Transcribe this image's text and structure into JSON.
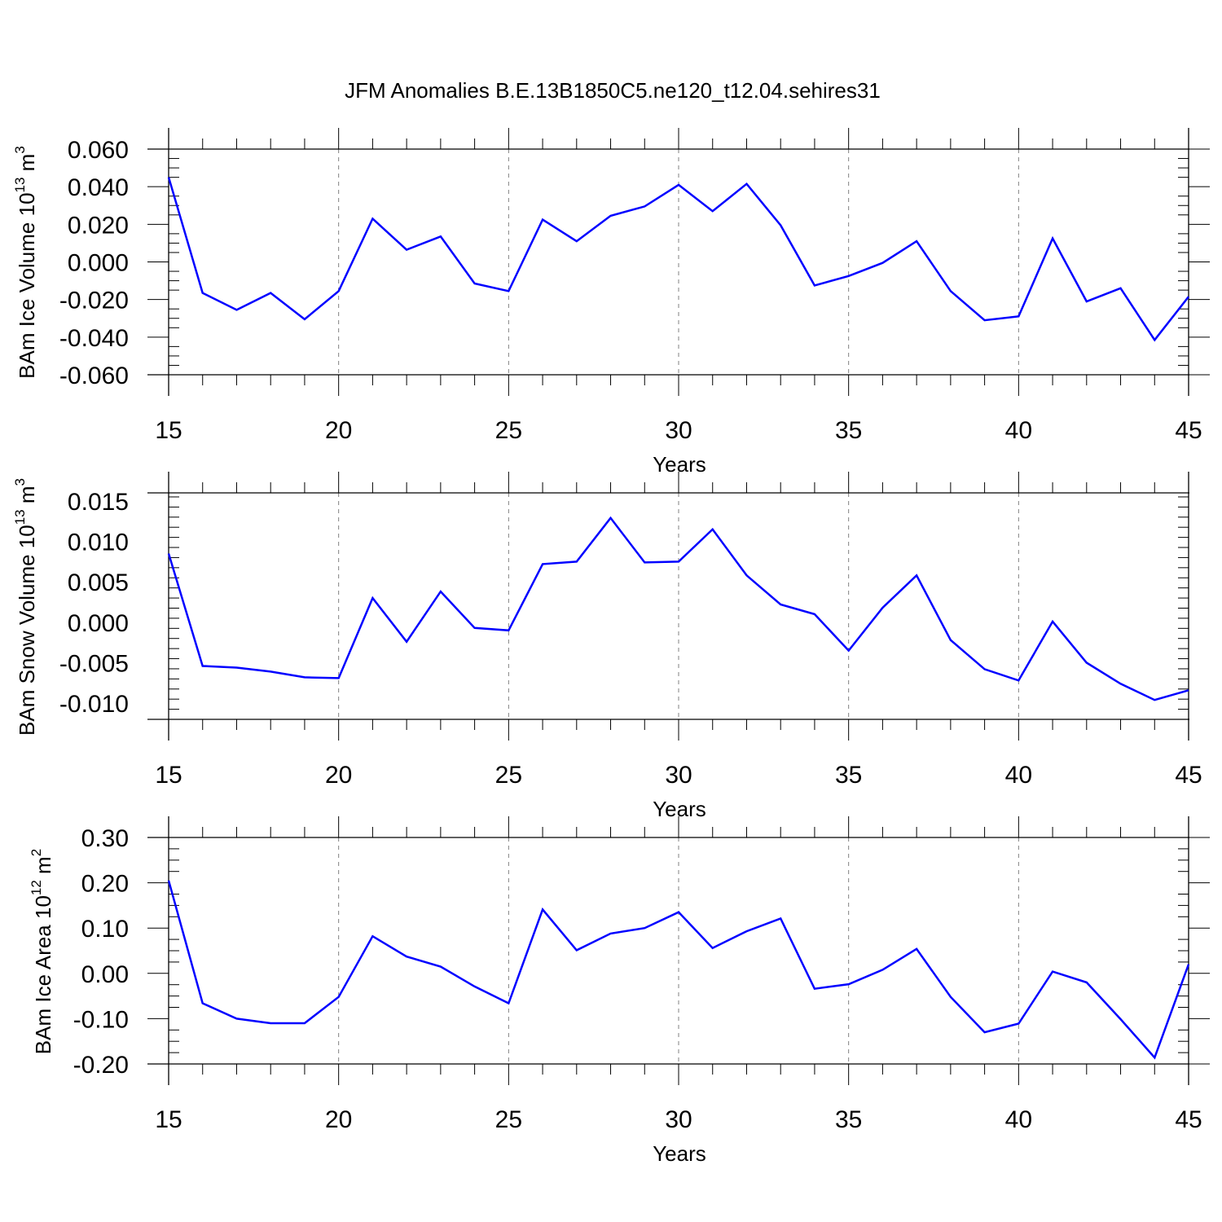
{
  "title": "JFM Anomalies B.E.13B1850C5.ne120_t12.04.sehires31",
  "colors": {
    "line": "#0000ff",
    "axis": "#000000",
    "grid": "#808080"
  },
  "chart_data": [
    {
      "type": "line",
      "title": "",
      "xlabel": "Years",
      "ylabel": {
        "text": "BAm Ice Volume 10",
        "exp": "13",
        "unit": " m",
        "unit_exp": "3"
      },
      "xlim": [
        15,
        45
      ],
      "ylim": [
        -0.06,
        0.06
      ],
      "x_ticks": [
        15,
        20,
        25,
        30,
        35,
        40,
        45
      ],
      "x_tick_labels": [
        "15",
        "20",
        "25",
        "30",
        "35",
        "40",
        "45"
      ],
      "y_ticks": [
        -0.06,
        -0.04,
        -0.02,
        0.0,
        0.02,
        0.04,
        0.06
      ],
      "y_tick_labels": [
        "-0.060",
        "-0.040",
        "-0.020",
        "0.000",
        "0.020",
        "0.040",
        "0.060"
      ],
      "grid": "vertical dashed at major x ticks",
      "x": [
        15,
        16,
        17,
        18,
        19,
        20,
        21,
        22,
        23,
        24,
        25,
        26,
        27,
        28,
        29,
        30,
        31,
        32,
        33,
        34,
        35,
        36,
        37,
        38,
        39,
        40,
        41,
        42,
        43,
        44,
        45
      ],
      "values": [
        0.045,
        -0.0165,
        -0.0255,
        -0.0165,
        -0.0305,
        -0.0155,
        0.023,
        0.0065,
        0.0135,
        -0.0115,
        -0.0155,
        0.0225,
        0.011,
        0.0245,
        0.0295,
        0.041,
        0.027,
        0.0415,
        0.0195,
        -0.0125,
        -0.0075,
        -0.0005,
        0.011,
        -0.0155,
        -0.031,
        -0.029,
        0.0125,
        -0.021,
        -0.014,
        -0.0415,
        -0.0185
      ]
    },
    {
      "type": "line",
      "title": "",
      "xlabel": "Years",
      "ylabel": {
        "text": "BAm Snow Volume 10",
        "exp": "13",
        "unit": " m",
        "unit_exp": "3"
      },
      "xlim": [
        15,
        45
      ],
      "ylim": [
        -0.012,
        0.016
      ],
      "x_ticks": [
        15,
        20,
        25,
        30,
        35,
        40,
        45
      ],
      "x_tick_labels": [
        "15",
        "20",
        "25",
        "30",
        "35",
        "40",
        "45"
      ],
      "y_ticks": [
        -0.01,
        -0.005,
        0.0,
        0.005,
        0.01,
        0.015
      ],
      "y_tick_labels": [
        "-0.010",
        "-0.005",
        "0.000",
        "0.005",
        "0.010",
        "0.015"
      ],
      "grid": "vertical dashed at major x ticks",
      "x": [
        15,
        16,
        17,
        18,
        19,
        20,
        21,
        22,
        23,
        24,
        25,
        26,
        27,
        28,
        29,
        30,
        31,
        32,
        33,
        34,
        35,
        36,
        37,
        38,
        39,
        40,
        41,
        42,
        43,
        44,
        45
      ],
      "values": [
        0.0085,
        -0.0054,
        -0.0056,
        -0.0061,
        -0.0068,
        -0.0069,
        0.003,
        -0.0024,
        0.0038,
        -0.0007,
        -0.001,
        0.0072,
        0.0075,
        0.0129,
        0.0074,
        0.0075,
        0.0115,
        0.0058,
        0.0022,
        0.001,
        -0.0035,
        0.0018,
        0.0058,
        -0.0022,
        -0.0058,
        -0.0072,
        0.0001,
        -0.005,
        -0.0076,
        -0.0096,
        -0.0084
      ]
    },
    {
      "type": "line",
      "title": "",
      "xlabel": "Years",
      "ylabel": {
        "text": "BAm Ice Area 10",
        "exp": "12",
        "unit": " m",
        "unit_exp": "2"
      },
      "xlim": [
        15,
        45
      ],
      "ylim": [
        -0.2,
        0.3
      ],
      "x_ticks": [
        15,
        20,
        25,
        30,
        35,
        40,
        45
      ],
      "x_tick_labels": [
        "15",
        "20",
        "25",
        "30",
        "35",
        "40",
        "45"
      ],
      "y_ticks": [
        -0.2,
        -0.1,
        0.0,
        0.1,
        0.2,
        0.3
      ],
      "y_tick_labels": [
        "-0.20",
        "-0.10",
        "0.00",
        "0.10",
        "0.20",
        "0.30"
      ],
      "grid": "vertical dashed at major x ticks",
      "x": [
        15,
        16,
        17,
        18,
        19,
        20,
        21,
        22,
        23,
        24,
        25,
        26,
        27,
        28,
        29,
        30,
        31,
        32,
        33,
        34,
        35,
        36,
        37,
        38,
        39,
        40,
        41,
        42,
        43,
        44,
        45
      ],
      "values": [
        0.205,
        -0.066,
        -0.1,
        -0.11,
        -0.11,
        -0.052,
        0.082,
        0.037,
        0.015,
        -0.029,
        -0.066,
        0.141,
        0.051,
        0.088,
        0.1,
        0.135,
        0.056,
        0.093,
        0.121,
        -0.034,
        -0.024,
        0.008,
        0.054,
        -0.052,
        -0.13,
        -0.111,
        0.004,
        -0.02,
        -0.101,
        -0.186,
        0.02
      ]
    }
  ]
}
